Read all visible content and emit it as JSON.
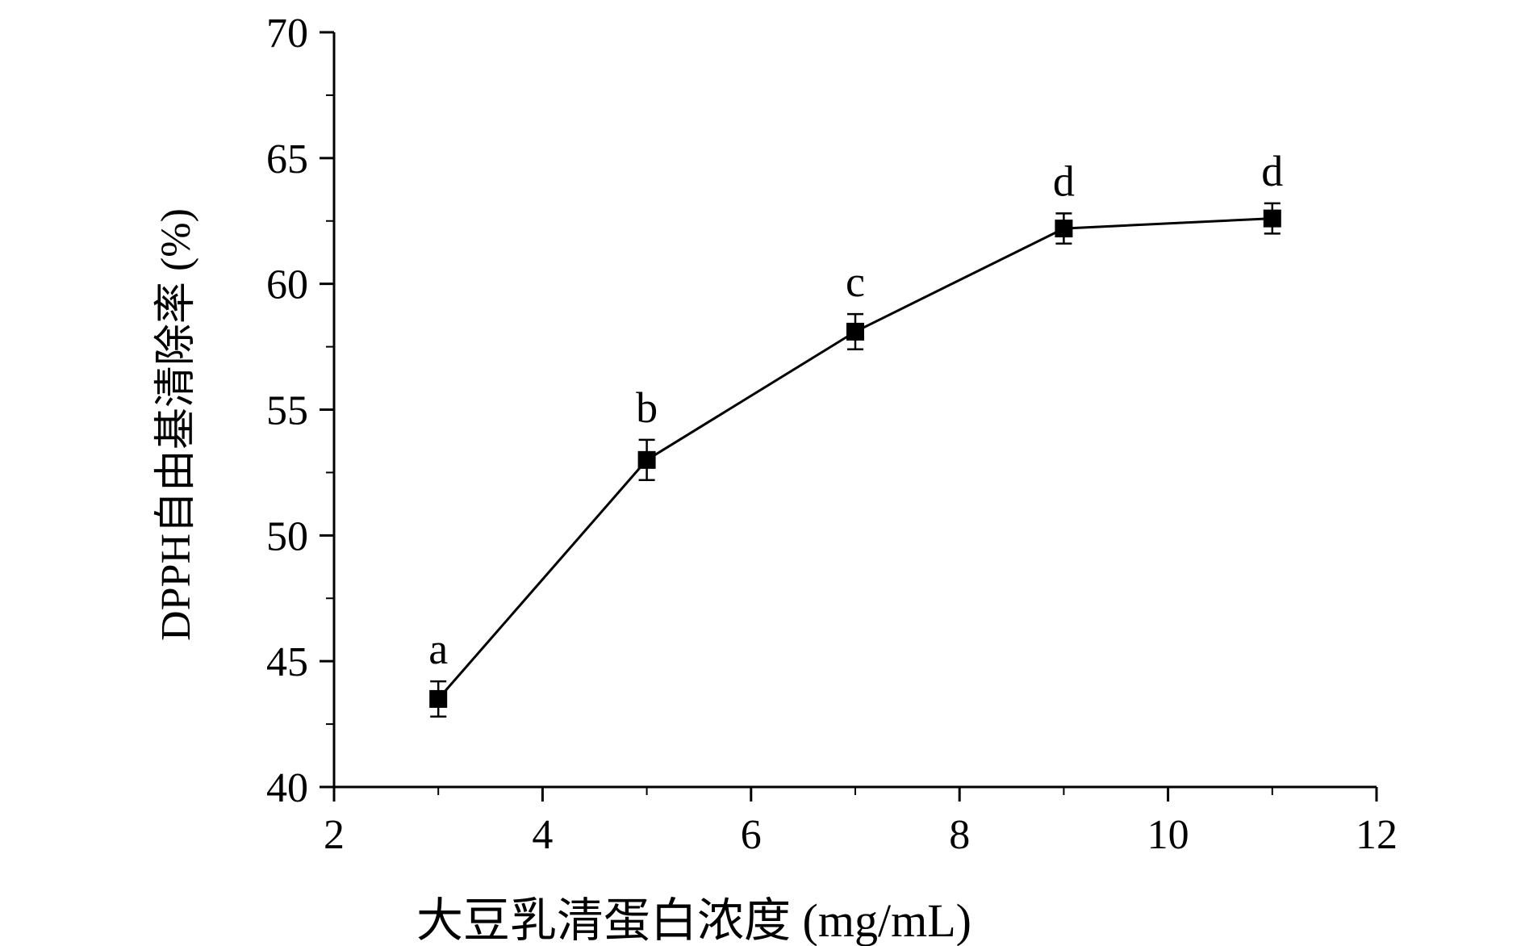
{
  "chart_data": {
    "type": "scatter",
    "xlabel": "大豆乳清蛋白浓度 (mg/mL)",
    "ylabel": "DPPH自由基清除率 (%)",
    "xlim": [
      2,
      12
    ],
    "ylim": [
      40,
      70
    ],
    "xticks": [
      2,
      4,
      6,
      8,
      10,
      12
    ],
    "yticks": [
      40,
      45,
      50,
      55,
      60,
      65,
      70
    ],
    "x_tick_labels": [
      "2",
      "4",
      "6",
      "8",
      "10",
      "12"
    ],
    "y_tick_labels": [
      "40",
      "45",
      "50",
      "55",
      "60",
      "65",
      "70"
    ],
    "grid": false,
    "line_color": "#000000",
    "marker": "square",
    "x": [
      3,
      5,
      7,
      9,
      11
    ],
    "y": [
      43.5,
      53.0,
      58.1,
      62.2,
      62.6
    ],
    "yerr": [
      0.7,
      0.8,
      0.7,
      0.6,
      0.6
    ],
    "annotations": [
      "a",
      "b",
      "c",
      "d",
      "d"
    ]
  }
}
